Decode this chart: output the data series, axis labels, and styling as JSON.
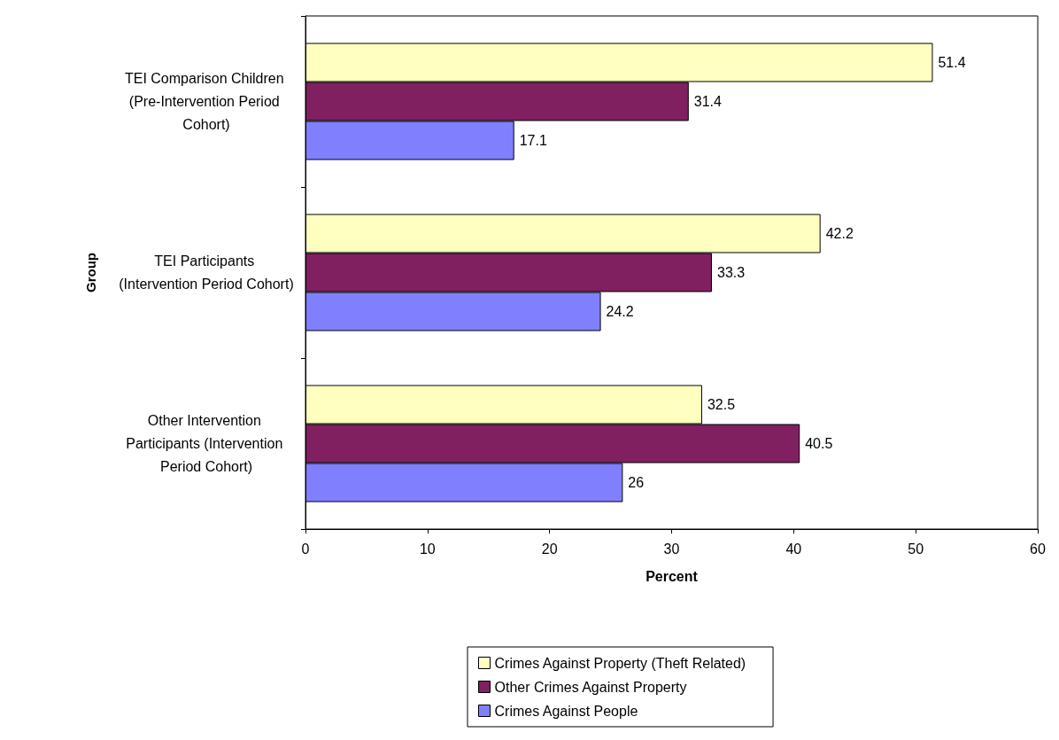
{
  "chart_data": {
    "type": "bar",
    "orientation": "horizontal",
    "xlabel": "Percent",
    "ylabel": "Group",
    "categories": [
      "TEI Comparison Children (Pre-Intervention Period Cohort)",
      "TEI Participants (Intervention Period Cohort)",
      "Other Intervention Participants (Intervention Period Cohort)"
    ],
    "series": [
      {
        "name": "Crimes Against Property (Theft Related)",
        "color": "#ffffc0",
        "values": [
          51.4,
          42.2,
          32.5
        ]
      },
      {
        "name": "Other Crimes Against Property",
        "color": "#802060",
        "values": [
          31.4,
          33.3,
          40.5
        ]
      },
      {
        "name": "Crimes Against People",
        "color": "#8080ff",
        "values": [
          17.1,
          24.2,
          26
        ]
      }
    ],
    "xlim": [
      0,
      60
    ],
    "xticks": [
      0,
      10,
      20,
      30,
      40,
      50,
      60
    ],
    "data_labels": true,
    "grid": false,
    "legend": "bottom"
  }
}
